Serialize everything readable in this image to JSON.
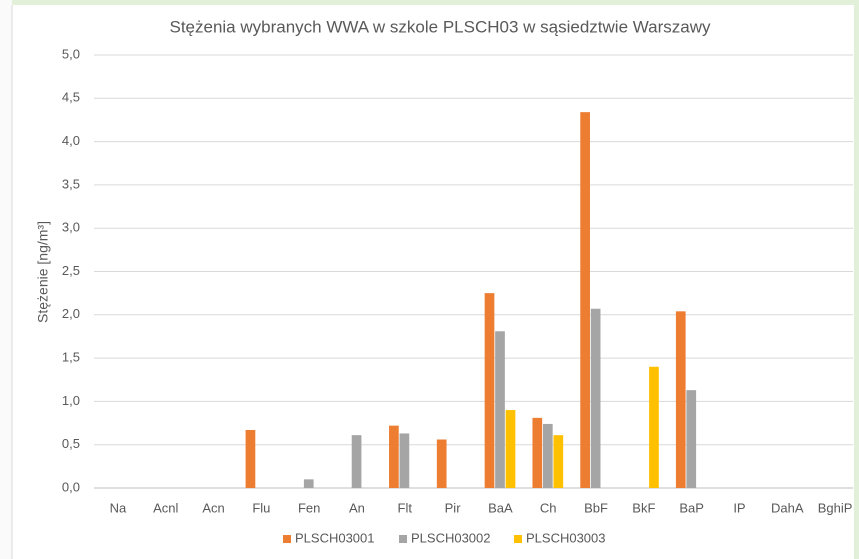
{
  "chart_data": {
    "type": "bar",
    "title": "Stężenia wybranych WWA w szkole PLSCH03 w sąsiedztwie Warszawy",
    "y_label": "Stężenie [ng/m³]",
    "categories": [
      "Na",
      "Acnl",
      "Acn",
      "Flu",
      "Fen",
      "An",
      "Flt",
      "Pir",
      "BaA",
      "Ch",
      "BbF",
      "BkF",
      "BaP",
      "IP",
      "DahA",
      "BghiP"
    ],
    "series": [
      {
        "name": "PLSCH03001",
        "color": "#ed7d31",
        "values": [
          null,
          null,
          null,
          0.67,
          null,
          null,
          0.72,
          0.56,
          2.25,
          0.81,
          4.34,
          null,
          2.04,
          null,
          null,
          null
        ]
      },
      {
        "name": "PLSCH03002",
        "color": "#a5a5a5",
        "values": [
          null,
          null,
          null,
          null,
          0.1,
          0.61,
          0.63,
          null,
          1.81,
          0.74,
          2.07,
          null,
          1.13,
          null,
          null,
          null
        ]
      },
      {
        "name": "PLSCH03003",
        "color": "#ffc000",
        "values": [
          null,
          null,
          null,
          null,
          null,
          null,
          null,
          null,
          0.9,
          0.61,
          null,
          1.4,
          null,
          null,
          null,
          null
        ]
      }
    ],
    "ylim": [
      0,
      5
    ],
    "yticks": [
      {
        "value": 0,
        "label": "0,0"
      },
      {
        "value": 0.5,
        "label": "0,5"
      },
      {
        "value": 1,
        "label": "1,0"
      },
      {
        "value": 1.5,
        "label": "1,5"
      },
      {
        "value": 2,
        "label": "2,0"
      },
      {
        "value": 2.5,
        "label": "2,5"
      },
      {
        "value": 3,
        "label": "3,0"
      },
      {
        "value": 3.5,
        "label": "3,5"
      },
      {
        "value": 4,
        "label": "4,0"
      },
      {
        "value": 4.5,
        "label": "4,5"
      },
      {
        "value": 5,
        "label": "5,0"
      }
    ],
    "grid": true,
    "legend": "bottom"
  }
}
